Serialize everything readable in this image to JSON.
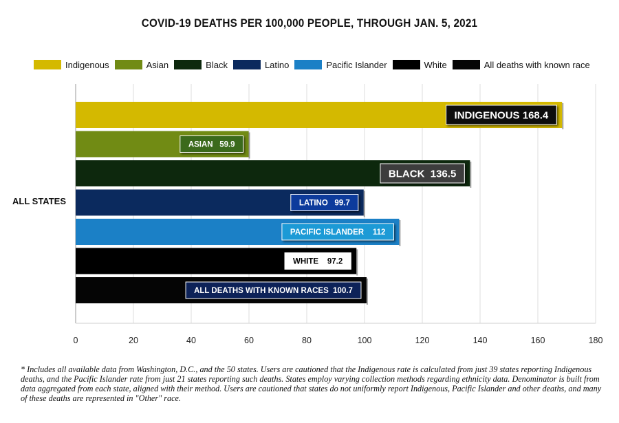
{
  "chart_data": {
    "type": "bar",
    "orientation": "horizontal",
    "title": "COVID-19 DEATHS PER 100,000 PEOPLE, THROUGH JAN. 5, 2021",
    "categories": [
      "ALL STATES"
    ],
    "xlim": [
      0,
      180
    ],
    "x_ticks": [
      "0",
      "20",
      "40",
      "60",
      "80",
      "100",
      "120",
      "140",
      "160",
      "180"
    ],
    "grid": true,
    "legend_position": "top",
    "series": [
      {
        "name": "Indigenous",
        "value": 168.4,
        "label": "INDIGENOUS 168.4",
        "color": "#d4b900",
        "label_bg": "#111111",
        "label_fg": "#ffffff"
      },
      {
        "name": "Asian",
        "value": 59.9,
        "label": "ASIAN   59.9",
        "color": "#718b14",
        "label_bg": "#3b6a1a",
        "label_fg": "#ffffff"
      },
      {
        "name": "Black",
        "value": 136.5,
        "label": "BLACK  136.5",
        "color": "#0d280d",
        "label_bg": "#3c3c3c",
        "label_fg": "#ffffff"
      },
      {
        "name": "Latino",
        "value": 99.7,
        "label": "LATINO   99.7",
        "color": "#0b2a5e",
        "label_bg": "#0d3a9c",
        "label_fg": "#ffffff"
      },
      {
        "name": "Pacific Islander",
        "value": 112,
        "label": "PACIFIC ISLANDER    112",
        "color": "#1b80c6",
        "label_bg": "#1a9ad6",
        "label_fg": "#ffffff"
      },
      {
        "name": "White",
        "value": 97.2,
        "label": "WHITE    97.2",
        "color": "#000000",
        "label_bg": "#ffffff",
        "label_fg": "#000000"
      },
      {
        "name": "All deaths with known race",
        "value": 100.7,
        "label": "ALL DEATHS WITH KNOWN RACES  100.7",
        "color": "#050505",
        "label_bg": "#0b2458",
        "label_fg": "#ffffff"
      }
    ]
  },
  "footnote": "* Includes all available data from Washington, D.C., and the 50 states. Users are cautioned that the Indigenous rate is calculated from just 39 states reporting Indigenous deaths, and the Pacific Islander rate from just 21 states reporting such deaths. States employ varying collection methods regarding ethnicity data. Denominator is built from data aggregated from each state, aligned with their method. Users are cautioned that states do not uniformly report Indigenous, Pacific Islander and other deaths, and many of these deaths are represented in \"Other\" race."
}
